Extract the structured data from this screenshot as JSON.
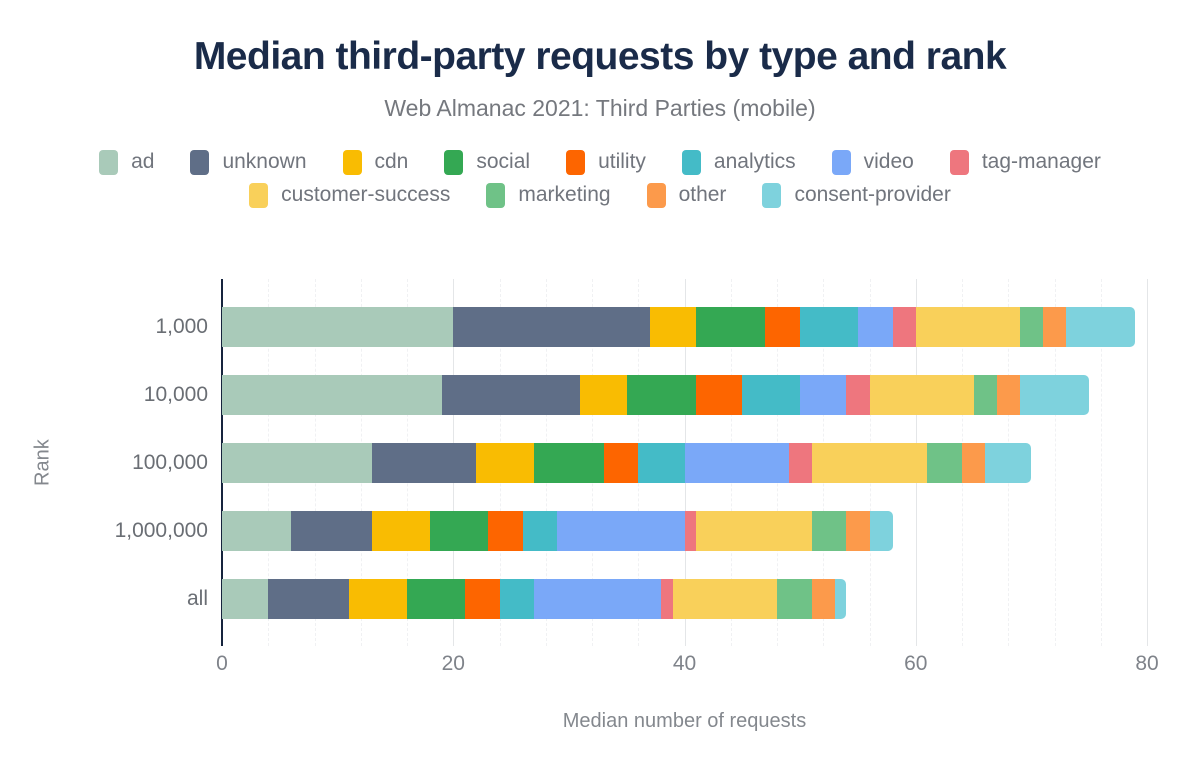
{
  "chart_data": {
    "type": "bar",
    "orientation": "horizontal",
    "stacked": true,
    "title": "Median third-party requests by type and rank",
    "subtitle": "Web Almanac 2021: Third Parties (mobile)",
    "xlabel": "Median number of requests",
    "ylabel": "Rank",
    "xlim": [
      0,
      80
    ],
    "xticks": [
      0,
      20,
      40,
      60,
      80
    ],
    "minor_grid_step": 4,
    "grid": "vertical",
    "legend_position": "top",
    "legend_row_split": 8,
    "axis_line_color": "#16243d",
    "categories": [
      "1,000",
      "10,000",
      "100,000",
      "1,000,000",
      "all"
    ],
    "series": [
      {
        "name": "ad",
        "color": "#a9cab9",
        "values": [
          20,
          19,
          13,
          6,
          4
        ]
      },
      {
        "name": "unknown",
        "color": "#5f6e87",
        "values": [
          17,
          12,
          9,
          7,
          7
        ]
      },
      {
        "name": "cdn",
        "color": "#f9bc02",
        "values": [
          4,
          4,
          5,
          5,
          5
        ]
      },
      {
        "name": "social",
        "color": "#34a853",
        "values": [
          6,
          6,
          6,
          5,
          5
        ]
      },
      {
        "name": "utility",
        "color": "#fd6500",
        "values": [
          3,
          4,
          3,
          3,
          3
        ]
      },
      {
        "name": "analytics",
        "color": "#44bbc7",
        "values": [
          5,
          5,
          4,
          3,
          3
        ]
      },
      {
        "name": "video",
        "color": "#7aa8f8",
        "values": [
          3,
          4,
          9,
          11,
          11
        ]
      },
      {
        "name": "tag-manager",
        "color": "#ee767e",
        "values": [
          2,
          2,
          2,
          1,
          1
        ]
      },
      {
        "name": "customer-success",
        "color": "#f9d05a",
        "values": [
          9,
          9,
          10,
          10,
          9
        ]
      },
      {
        "name": "marketing",
        "color": "#6fc287",
        "values": [
          2,
          2,
          3,
          3,
          3
        ]
      },
      {
        "name": "other",
        "color": "#fc9a4b",
        "values": [
          2,
          2,
          2,
          2,
          2
        ]
      },
      {
        "name": "consent-provider",
        "color": "#7ed2dd",
        "values": [
          6,
          6,
          4,
          2,
          1
        ]
      }
    ],
    "totals": [
      79,
      75,
      70,
      58,
      54
    ]
  }
}
